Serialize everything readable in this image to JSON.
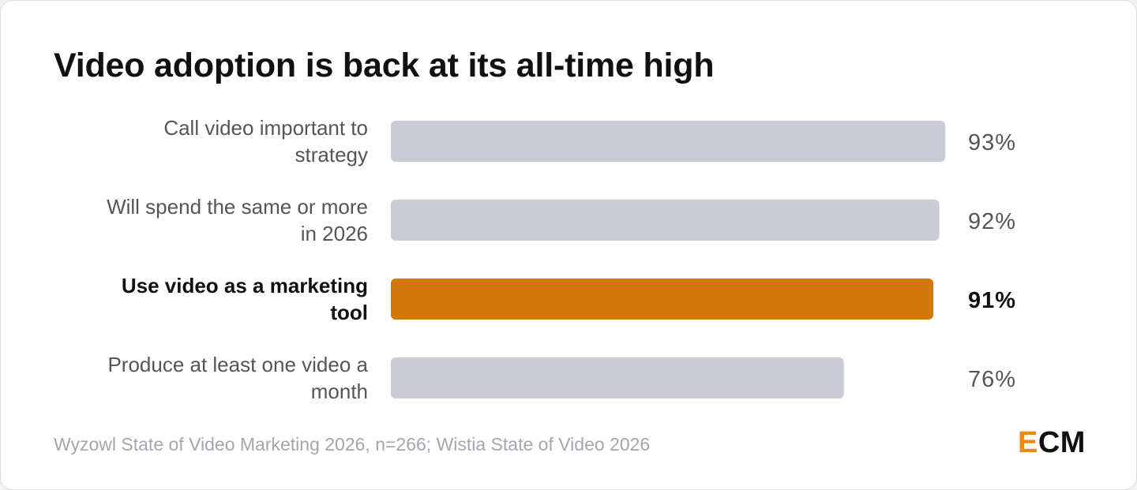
{
  "chart_data": {
    "type": "bar",
    "orientation": "horizontal",
    "title": "Video adoption is back at its all-time high",
    "categories": [
      [
        "Call video important to",
        "strategy"
      ],
      [
        "Will spend the same or more",
        "in 2026"
      ],
      [
        "Use video as a marketing",
        "tool"
      ],
      [
        "Produce at least one video a",
        "month"
      ]
    ],
    "values": [
      93,
      92,
      91,
      76
    ],
    "value_labels": [
      "93%",
      "92%",
      "91%",
      "76%"
    ],
    "highlight_index": 2,
    "unit": "%",
    "xlim": [
      0,
      100
    ],
    "grid": false,
    "legend": "none",
    "colors": {
      "bar": "#c9ccd4",
      "highlight": "#d4770b"
    }
  },
  "footer": {
    "source": "Wyzowl State of Video Marketing 2026, n=266; Wistia State of Video 2026",
    "logo_e": "E",
    "logo_rest": "CM"
  },
  "colors": {
    "logo_accent": "#ee8a12",
    "title": "#111111",
    "label": "#555559",
    "source": "#a3a6ae"
  }
}
